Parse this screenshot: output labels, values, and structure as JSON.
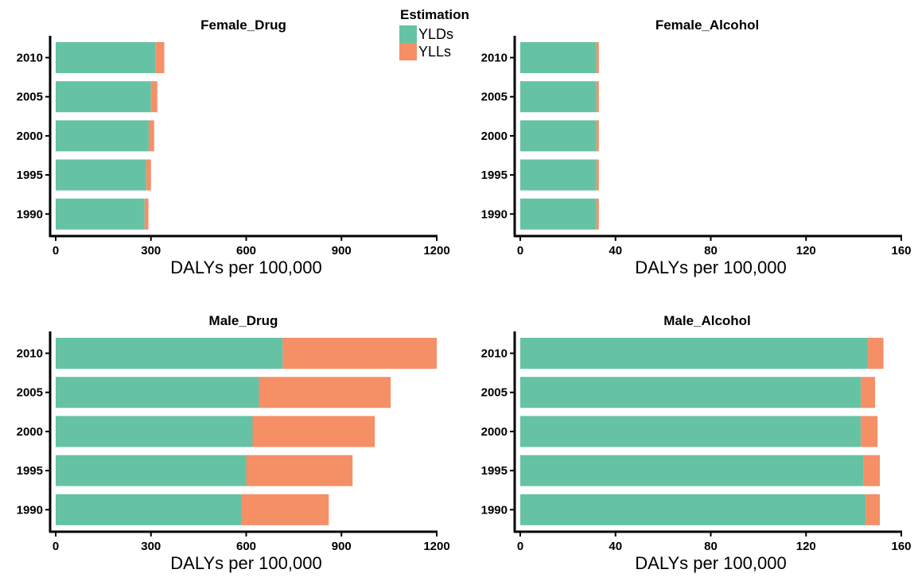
{
  "colors": {
    "yld": "#66c2a5",
    "yll": "#f58f66",
    "axis": "#000000"
  },
  "legend": {
    "title": "Estimation",
    "items": [
      {
        "label": "YLDs",
        "color": "#66c2a5"
      },
      {
        "label": "YLLs",
        "color": "#f58f66"
      }
    ]
  },
  "chart_data": [
    {
      "type": "bar",
      "orientation": "horizontal",
      "stacked": true,
      "title": "Female_Drug",
      "xlabel": "DALYs per 100,000",
      "ylabel": "",
      "xlim": [
        0,
        1200
      ],
      "xticks": [
        "0",
        "300",
        "600",
        "900",
        "1200"
      ],
      "categories": [
        "1990",
        "1995",
        "2000",
        "2005",
        "2010"
      ],
      "series": [
        {
          "name": "YLDs",
          "values": [
            280,
            285,
            293,
            300,
            315
          ]
        },
        {
          "name": "YLLs",
          "values": [
            12,
            15,
            17,
            20,
            27
          ]
        }
      ]
    },
    {
      "type": "bar",
      "orientation": "horizontal",
      "stacked": true,
      "title": "Female_Alcohol",
      "xlabel": "DALYs per 100,000",
      "ylabel": "",
      "xlim": [
        0,
        160
      ],
      "xticks": [
        "0",
        "40",
        "80",
        "120",
        "160"
      ],
      "categories": [
        "1990",
        "1995",
        "2000",
        "2005",
        "2010"
      ],
      "series": [
        {
          "name": "YLDs",
          "values": [
            32,
            32,
            32,
            32,
            32
          ]
        },
        {
          "name": "YLLs",
          "values": [
            1,
            1,
            1,
            1,
            1
          ]
        }
      ]
    },
    {
      "type": "bar",
      "orientation": "horizontal",
      "stacked": true,
      "title": "Male_Drug",
      "xlabel": "DALYs per 100,000",
      "ylabel": "",
      "xlim": [
        0,
        1200
      ],
      "xticks": [
        "0",
        "300",
        "600",
        "900",
        "1200"
      ],
      "categories": [
        "1990",
        "1995",
        "2000",
        "2005",
        "2010"
      ],
      "series": [
        {
          "name": "YLDs",
          "values": [
            585,
            600,
            620,
            640,
            715
          ]
        },
        {
          "name": "YLLs",
          "values": [
            275,
            335,
            385,
            415,
            485
          ]
        }
      ]
    },
    {
      "type": "bar",
      "orientation": "horizontal",
      "stacked": true,
      "title": "Male_Alcohol",
      "xlabel": "DALYs per 100,000",
      "ylabel": "",
      "xlim": [
        0,
        160
      ],
      "xticks": [
        "0",
        "40",
        "80",
        "120",
        "160"
      ],
      "categories": [
        "1990",
        "1995",
        "2000",
        "2005",
        "2010"
      ],
      "series": [
        {
          "name": "YLDs",
          "values": [
            145,
            144,
            143,
            143,
            146
          ]
        },
        {
          "name": "YLLs",
          "values": [
            6,
            7,
            7,
            6,
            6.5
          ]
        }
      ]
    }
  ]
}
